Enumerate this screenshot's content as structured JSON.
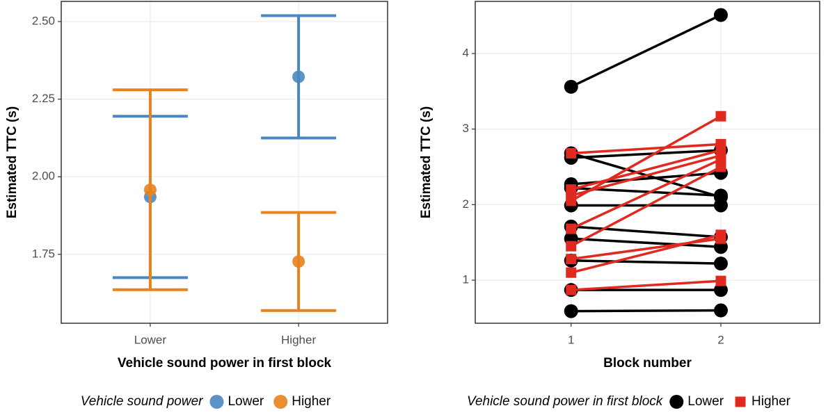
{
  "chart_data": [
    {
      "type": "errorbar",
      "x_label": "Vehicle sound power in first block",
      "y_label": "Estimated TTC (s)",
      "categories": [
        "Lower",
        "Higher"
      ],
      "series": [
        {
          "name": "Lower",
          "color": "#4a86c0",
          "values": [
            1.935,
            2.322
          ],
          "errors": [
            0.26,
            0.197
          ]
        },
        {
          "name": "Higher",
          "color": "#e8821e",
          "values": [
            1.958,
            1.727
          ],
          "errors": [
            0.322,
            0.158
          ]
        }
      ],
      "ylim": [
        1.528,
        2.565
      ],
      "yticks": [
        1.75,
        {
          "value": 2.0,
          "label": "2.00"
        },
        2.25,
        {
          "value": 2.5,
          "label": "2.50"
        }
      ],
      "grid": true,
      "legend_title": "Vehicle sound power",
      "legend": "bottom"
    },
    {
      "type": "line",
      "x_label": "Block number",
      "y_label": "Estimated TTC (s)",
      "x": [
        1,
        2
      ],
      "series": [
        {
          "name": "Lower",
          "color": "#000000",
          "marker": "circle",
          "values": [
            [
              3.56,
              4.51
            ],
            [
              2.68,
              2.1
            ],
            [
              2.62,
              2.72
            ],
            [
              2.27,
              2.42
            ],
            [
              2.22,
              2.12
            ],
            [
              1.99,
              1.99
            ],
            [
              1.71,
              1.57
            ],
            [
              1.55,
              1.44
            ],
            [
              1.26,
              1.22
            ],
            [
              0.87,
              0.87
            ],
            [
              0.59,
              0.6
            ]
          ]
        },
        {
          "name": "Higher",
          "color": "#e0291f",
          "marker": "square",
          "values": [
            [
              2.68,
              2.8
            ],
            [
              2.2,
              2.72
            ],
            [
              2.12,
              2.65
            ],
            [
              2.05,
              3.17
            ],
            [
              1.68,
              2.6
            ],
            [
              1.45,
              2.5
            ],
            [
              1.28,
              1.55
            ],
            [
              1.1,
              1.6
            ],
            [
              0.87,
              0.99
            ]
          ]
        }
      ],
      "xlim": [
        0.36,
        2.66
      ],
      "xticks": [
        1,
        2
      ],
      "ylim": [
        0.43,
        4.69
      ],
      "yticks": [
        1,
        2,
        3,
        4
      ],
      "grid": true,
      "legend_title": "Vehicle sound power in first block",
      "legend": "bottom"
    }
  ]
}
